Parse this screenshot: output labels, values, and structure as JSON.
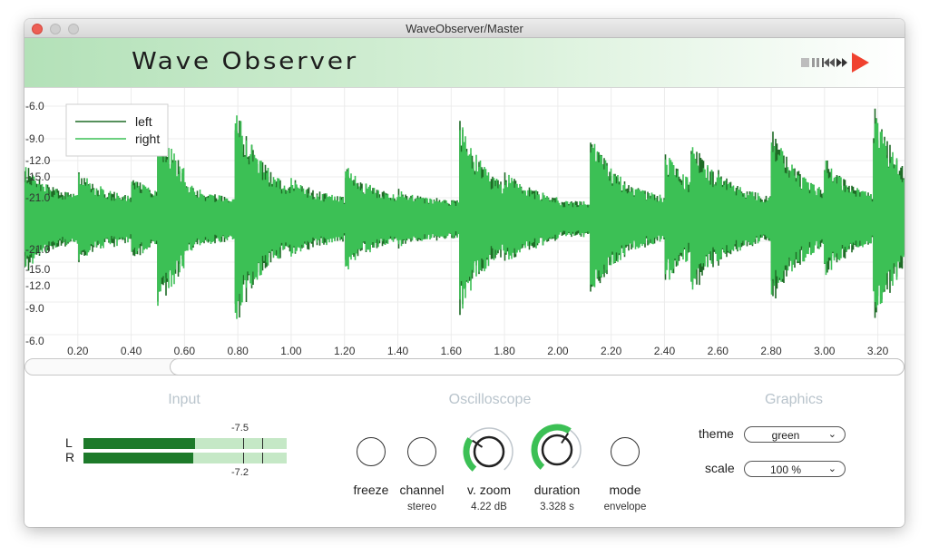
{
  "window": {
    "title": "WaveObserver/Master"
  },
  "header": {
    "app_title": "Wave Observer"
  },
  "scope": {
    "legend": [
      {
        "name": "left",
        "color": "#1e6b26"
      },
      {
        "name": "right",
        "color": "#3cc055"
      }
    ],
    "y_tick_labels_top": [
      "-6.0",
      "-9.0",
      "-12.0",
      "-15.0",
      "-21.0"
    ],
    "y_tick_labels_bottom": [
      "-21.0",
      "-15.0",
      "-12.0",
      "-9.0",
      "-6.0"
    ],
    "x_tick_labels": [
      "0.20",
      "0.40",
      "0.60",
      "0.80",
      "1.00",
      "1.20",
      "1.40",
      "1.60",
      "1.80",
      "2.00",
      "2.20",
      "2.40",
      "2.60",
      "2.80",
      "3.00",
      "3.20"
    ]
  },
  "chart_data": {
    "type": "line",
    "x": [
      0.0,
      0.2,
      0.4,
      0.5,
      0.6,
      0.79,
      1.0,
      1.2,
      1.4,
      1.63,
      1.8,
      2.0,
      2.12,
      2.4,
      2.5,
      2.6,
      2.8,
      3.0,
      3.18,
      3.3
    ],
    "series": [
      {
        "name": "left",
        "values": [
          0.45,
          0.4,
          0.35,
          0.8,
          0.3,
          0.95,
          0.35,
          0.45,
          0.25,
          0.8,
          0.4,
          0.15,
          0.7,
          0.55,
          0.65,
          0.4,
          0.75,
          0.5,
          0.95,
          0.45
        ]
      },
      {
        "name": "right",
        "values": [
          0.45,
          0.4,
          0.35,
          0.8,
          0.3,
          0.95,
          0.35,
          0.45,
          0.25,
          0.8,
          0.4,
          0.15,
          0.7,
          0.55,
          0.65,
          0.4,
          0.75,
          0.5,
          0.95,
          0.45
        ]
      }
    ],
    "y_tick_labels": [
      "-6.0",
      "-9.0",
      "-12.0",
      "-15.0",
      "-21.0",
      "-21.0",
      "-15.0",
      "-12.0",
      "-9.0",
      "-6.0"
    ],
    "xlim": [
      0,
      3.3
    ],
    "grid": true,
    "legend": "top-left"
  },
  "input": {
    "title": "Input",
    "channels": [
      {
        "letter": "L",
        "level": 0.55,
        "peak_fraction": 0.79,
        "ticks": [
          0.79,
          0.88
        ]
      },
      {
        "letter": "R",
        "level": 0.54,
        "peak_fraction": 0.79,
        "ticks": [
          0.79,
          0.88
        ]
      }
    ],
    "peak_l": "-7.5",
    "peak_r": "-7.2",
    "colors": {
      "fill": "#1d7a2a",
      "track": "#c5e8c6"
    }
  },
  "oscilloscope": {
    "title": "Oscilloscope",
    "freeze": {
      "label": "freeze"
    },
    "channel": {
      "label": "channel",
      "value": "stereo"
    },
    "vzoom": {
      "label": "v. zoom",
      "value": "4.22 dB",
      "fraction": 0.3
    },
    "duration": {
      "label": "duration",
      "value": "3.328 s",
      "fraction": 0.62
    },
    "mode": {
      "label": "mode",
      "value": "envelope"
    }
  },
  "graphics": {
    "title": "Graphics",
    "theme": {
      "label": "theme",
      "value": "green"
    },
    "scale": {
      "label": "scale",
      "value": "100 %"
    }
  },
  "colors": {
    "accent": "#3cc055",
    "dark_green": "#1e6b26",
    "play": "#f0422f"
  }
}
